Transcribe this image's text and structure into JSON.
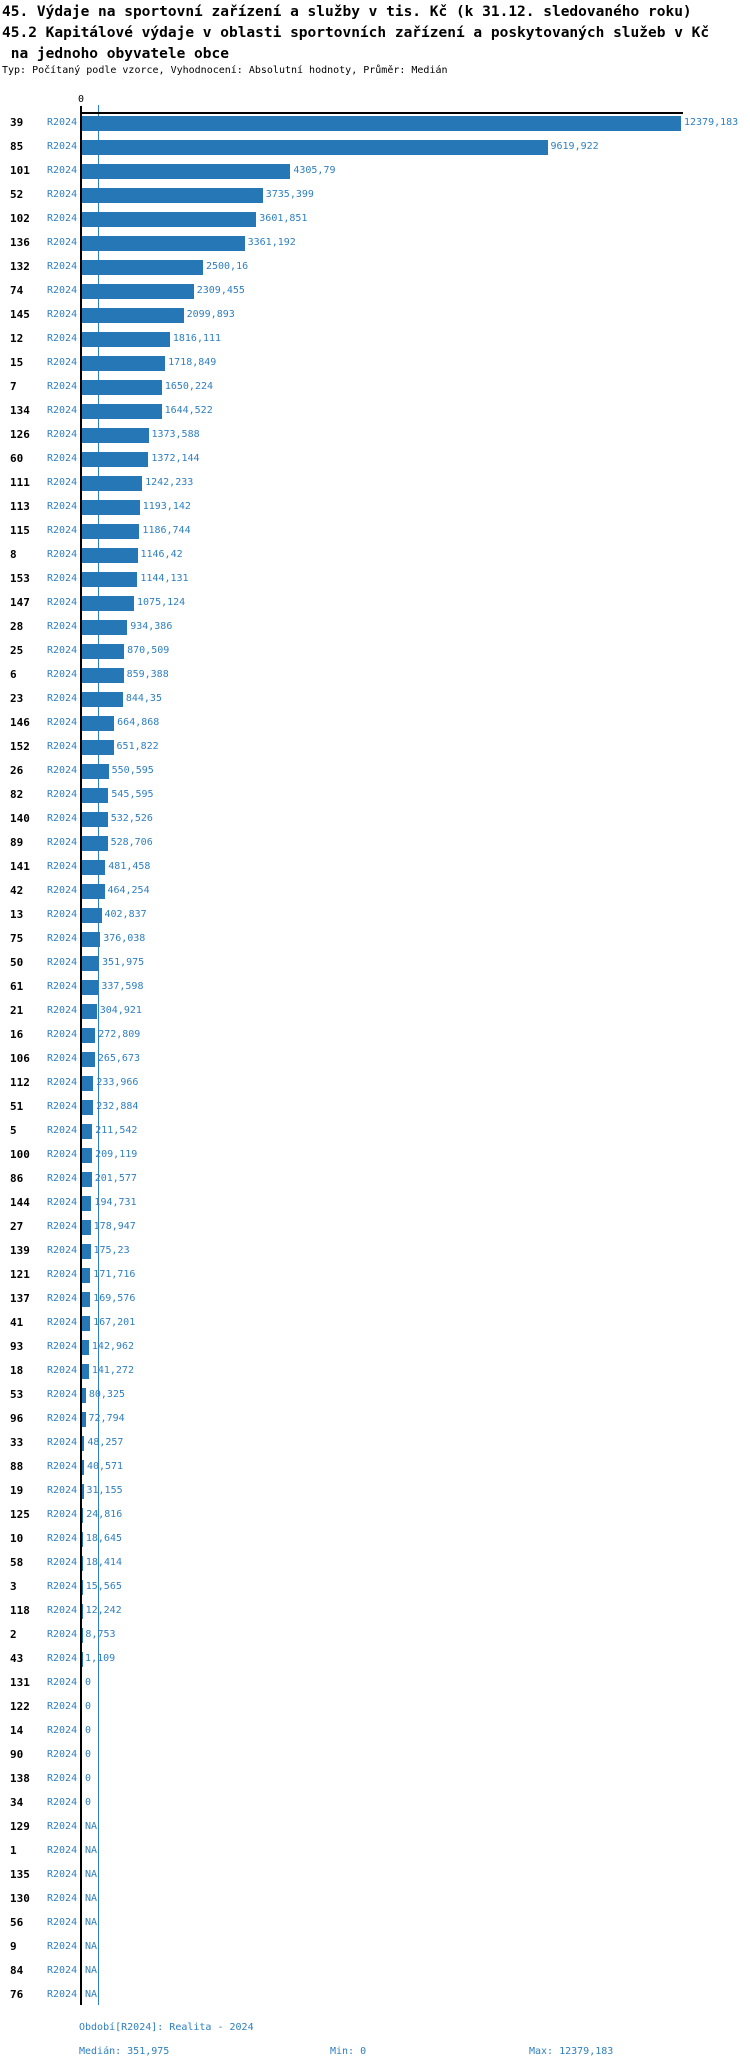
{
  "header": {
    "title_line1": "45. Výdaje na sportovní zařízení a služby v tis. Kč (k 31.12. sledovaného roku)",
    "title_line2": "45.2 Kapitálové výdaje v oblasti sportovních zařízení a poskytovaných služeb v Kč",
    "title_line3": " na jednoho obyvatele obce",
    "type_info": "Typ: Počítaný podle vzorce, Vyhodnocení: Absolutní hodnoty, Průměr: Medián"
  },
  "chart_data": {
    "type": "bar",
    "orientation": "horizontal",
    "series_label": "R2024",
    "value_axis": {
      "zero_label": "0",
      "min": 0,
      "max": 12379.183
    },
    "median_value": 351.975,
    "legend_position": "none",
    "grid": false,
    "rows": [
      {
        "id": "39",
        "period": "R2024",
        "value": "12379,183"
      },
      {
        "id": "85",
        "period": "R2024",
        "value": "9619,922"
      },
      {
        "id": "101",
        "period": "R2024",
        "value": "4305,79"
      },
      {
        "id": "52",
        "period": "R2024",
        "value": "3735,399"
      },
      {
        "id": "102",
        "period": "R2024",
        "value": "3601,851"
      },
      {
        "id": "136",
        "period": "R2024",
        "value": "3361,192"
      },
      {
        "id": "132",
        "period": "R2024",
        "value": "2500,16"
      },
      {
        "id": "74",
        "period": "R2024",
        "value": "2309,455"
      },
      {
        "id": "145",
        "period": "R2024",
        "value": "2099,893"
      },
      {
        "id": "12",
        "period": "R2024",
        "value": "1816,111"
      },
      {
        "id": "15",
        "period": "R2024",
        "value": "1718,849"
      },
      {
        "id": "7",
        "period": "R2024",
        "value": "1650,224"
      },
      {
        "id": "134",
        "period": "R2024",
        "value": "1644,522"
      },
      {
        "id": "126",
        "period": "R2024",
        "value": "1373,588"
      },
      {
        "id": "60",
        "period": "R2024",
        "value": "1372,144"
      },
      {
        "id": "111",
        "period": "R2024",
        "value": "1242,233"
      },
      {
        "id": "113",
        "period": "R2024",
        "value": "1193,142"
      },
      {
        "id": "115",
        "period": "R2024",
        "value": "1186,744"
      },
      {
        "id": "8",
        "period": "R2024",
        "value": "1146,42"
      },
      {
        "id": "153",
        "period": "R2024",
        "value": "1144,131"
      },
      {
        "id": "147",
        "period": "R2024",
        "value": "1075,124"
      },
      {
        "id": "28",
        "period": "R2024",
        "value": "934,386"
      },
      {
        "id": "25",
        "period": "R2024",
        "value": "870,509"
      },
      {
        "id": "6",
        "period": "R2024",
        "value": "859,388"
      },
      {
        "id": "23",
        "period": "R2024",
        "value": "844,35"
      },
      {
        "id": "146",
        "period": "R2024",
        "value": "664,868"
      },
      {
        "id": "152",
        "period": "R2024",
        "value": "651,822"
      },
      {
        "id": "26",
        "period": "R2024",
        "value": "550,595"
      },
      {
        "id": "82",
        "period": "R2024",
        "value": "545,595"
      },
      {
        "id": "140",
        "period": "R2024",
        "value": "532,526"
      },
      {
        "id": "89",
        "period": "R2024",
        "value": "528,706"
      },
      {
        "id": "141",
        "period": "R2024",
        "value": "481,458"
      },
      {
        "id": "42",
        "period": "R2024",
        "value": "464,254"
      },
      {
        "id": "13",
        "period": "R2024",
        "value": "402,837"
      },
      {
        "id": "75",
        "period": "R2024",
        "value": "376,038"
      },
      {
        "id": "50",
        "period": "R2024",
        "value": "351,975"
      },
      {
        "id": "61",
        "period": "R2024",
        "value": "337,598"
      },
      {
        "id": "21",
        "period": "R2024",
        "value": "304,921"
      },
      {
        "id": "16",
        "period": "R2024",
        "value": "272,809"
      },
      {
        "id": "106",
        "period": "R2024",
        "value": "265,673"
      },
      {
        "id": "112",
        "period": "R2024",
        "value": "233,966"
      },
      {
        "id": "51",
        "period": "R2024",
        "value": "232,884"
      },
      {
        "id": "5",
        "period": "R2024",
        "value": "211,542"
      },
      {
        "id": "100",
        "period": "R2024",
        "value": "209,119"
      },
      {
        "id": "86",
        "period": "R2024",
        "value": "201,577"
      },
      {
        "id": "144",
        "period": "R2024",
        "value": "194,731"
      },
      {
        "id": "27",
        "period": "R2024",
        "value": "178,947"
      },
      {
        "id": "139",
        "period": "R2024",
        "value": "175,23"
      },
      {
        "id": "121",
        "period": "R2024",
        "value": "171,716"
      },
      {
        "id": "137",
        "period": "R2024",
        "value": "169,576"
      },
      {
        "id": "41",
        "period": "R2024",
        "value": "167,201"
      },
      {
        "id": "93",
        "period": "R2024",
        "value": "142,962"
      },
      {
        "id": "18",
        "period": "R2024",
        "value": "141,272"
      },
      {
        "id": "53",
        "period": "R2024",
        "value": "80,325"
      },
      {
        "id": "96",
        "period": "R2024",
        "value": "72,794"
      },
      {
        "id": "33",
        "period": "R2024",
        "value": "48,257"
      },
      {
        "id": "88",
        "period": "R2024",
        "value": "40,571"
      },
      {
        "id": "19",
        "period": "R2024",
        "value": "31,155"
      },
      {
        "id": "125",
        "period": "R2024",
        "value": "24,816"
      },
      {
        "id": "10",
        "period": "R2024",
        "value": "18,645"
      },
      {
        "id": "58",
        "period": "R2024",
        "value": "18,414"
      },
      {
        "id": "3",
        "period": "R2024",
        "value": "15,565"
      },
      {
        "id": "118",
        "period": "R2024",
        "value": "12,242"
      },
      {
        "id": "2",
        "period": "R2024",
        "value": "8,753"
      },
      {
        "id": "43",
        "period": "R2024",
        "value": "1,109"
      },
      {
        "id": "131",
        "period": "R2024",
        "value": "0"
      },
      {
        "id": "122",
        "period": "R2024",
        "value": "0"
      },
      {
        "id": "14",
        "period": "R2024",
        "value": "0"
      },
      {
        "id": "90",
        "period": "R2024",
        "value": "0"
      },
      {
        "id": "138",
        "period": "R2024",
        "value": "0"
      },
      {
        "id": "34",
        "period": "R2024",
        "value": "0"
      },
      {
        "id": "129",
        "period": "R2024",
        "value": "NA"
      },
      {
        "id": "1",
        "period": "R2024",
        "value": "NA"
      },
      {
        "id": "135",
        "period": "R2024",
        "value": "NA"
      },
      {
        "id": "130",
        "period": "R2024",
        "value": "NA"
      },
      {
        "id": "56",
        "period": "R2024",
        "value": "NA"
      },
      {
        "id": "9",
        "period": "R2024",
        "value": "NA"
      },
      {
        "id": "84",
        "period": "R2024",
        "value": "NA"
      },
      {
        "id": "76",
        "period": "R2024",
        "value": "NA"
      }
    ]
  },
  "footer": {
    "period": "Období[R2024]: Realita - 2024",
    "median": "Medián: 351,975",
    "min": "Min: 0",
    "max": "Max: 12379,183"
  },
  "colors": {
    "bar": "#2577b5",
    "blue_text": "#2e7fc1",
    "axis": "#000000"
  }
}
